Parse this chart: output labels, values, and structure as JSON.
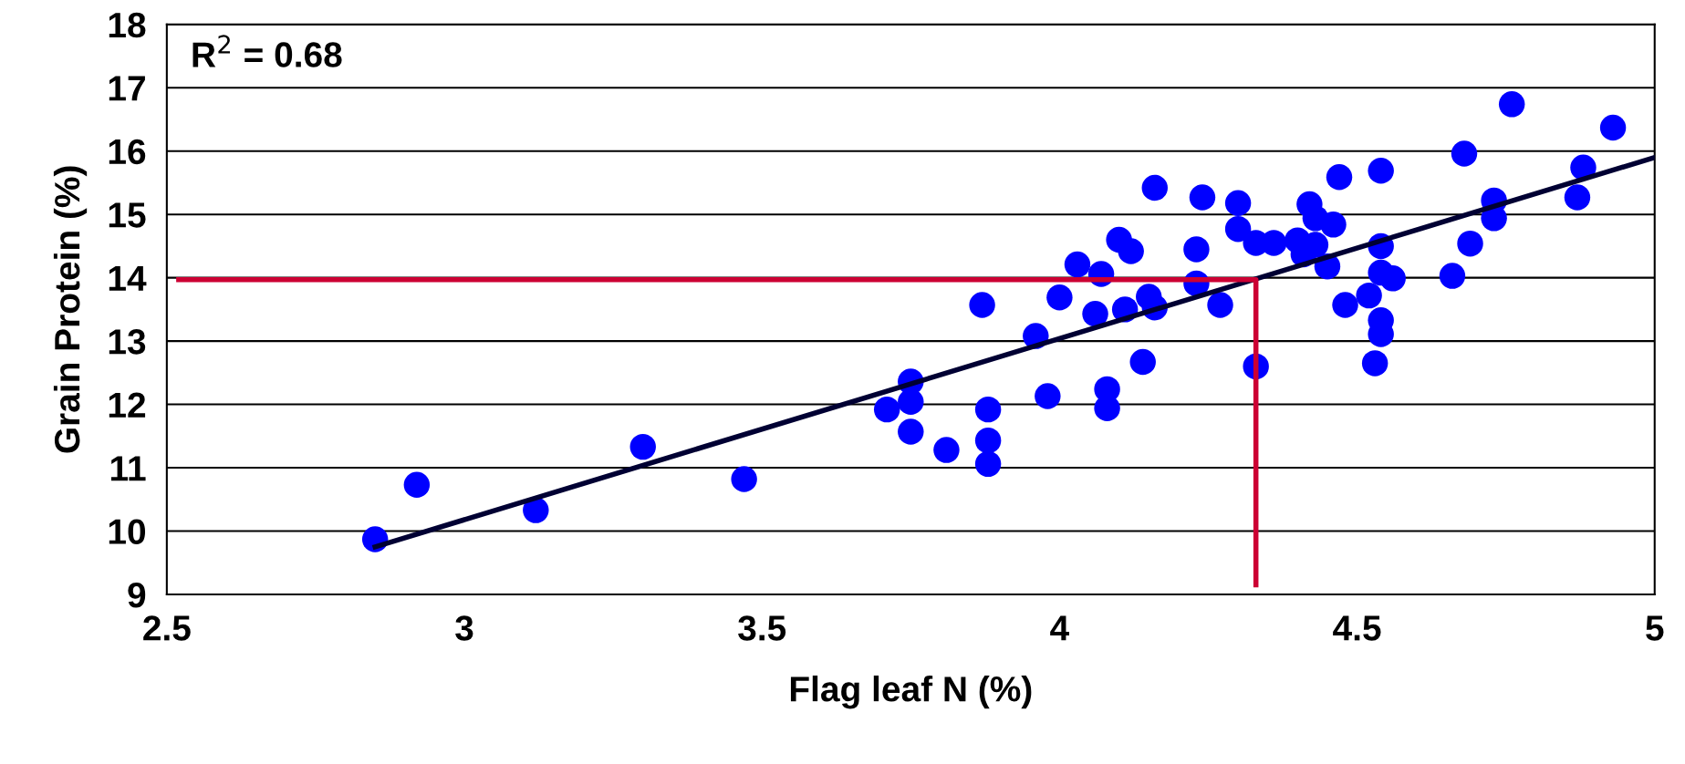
{
  "chart_data": {
    "type": "scatter",
    "xlabel": "Flag leaf N (%)",
    "ylabel": "Grain Protein (%)",
    "annotations": [
      "R$^{2}$ = 0.68"
    ],
    "xlim": [
      2.5,
      5
    ],
    "xticks": [
      2.5,
      3,
      3.5,
      4,
      4.5,
      5
    ],
    "ylim": [
      9,
      18
    ],
    "yticks": [
      9,
      10,
      11,
      12,
      13,
      14,
      15,
      16,
      17,
      18
    ],
    "grid": "y",
    "marker": "circle",
    "series": [
      {
        "color": "#0000ff",
        "x": [
          2.85,
          2.92,
          3.12,
          3.3,
          3.47,
          3.71,
          3.75,
          3.75,
          3.75,
          3.81,
          3.87,
          3.88,
          3.88,
          3.88,
          3.96,
          3.98,
          4.0,
          4.03,
          4.06,
          4.07,
          4.08,
          4.08,
          4.1,
          4.11,
          4.12,
          4.14,
          4.15,
          4.16,
          4.16,
          4.23,
          4.23,
          4.24,
          4.27,
          4.3,
          4.3,
          4.33,
          4.33,
          4.36,
          4.4,
          4.41,
          4.42,
          4.43,
          4.43,
          4.45,
          4.46,
          4.47,
          4.48,
          4.52,
          4.53,
          4.54,
          4.54,
          4.54,
          4.56,
          4.54,
          4.54,
          4.66,
          4.68,
          4.69,
          4.73,
          4.73,
          4.76,
          4.87,
          4.88,
          4.93
        ],
        "values": [
          9.87,
          10.73,
          10.33,
          11.33,
          10.82,
          11.92,
          12.36,
          12.04,
          11.57,
          11.28,
          13.57,
          11.43,
          11.06,
          11.92,
          13.08,
          12.13,
          13.69,
          14.21,
          13.43,
          14.06,
          11.94,
          12.24,
          14.6,
          13.5,
          14.42,
          12.67,
          13.7,
          13.53,
          15.42,
          14.45,
          13.91,
          15.27,
          13.57,
          15.18,
          14.77,
          12.6,
          14.55,
          14.55,
          14.59,
          14.37,
          15.16,
          14.52,
          14.94,
          14.18,
          14.84,
          15.59,
          13.57,
          13.72,
          12.65,
          15.69,
          14.5,
          14.08,
          13.99,
          13.33,
          13.11,
          14.03,
          15.96,
          14.54,
          15.22,
          14.94,
          16.74,
          15.27,
          15.74,
          16.37
        ]
      },
      {
        "type": "line",
        "color": "#000033",
        "marker": "none",
        "line_style": "solid",
        "x": [
          2.85,
          5.0
        ],
        "values": [
          9.75,
          15.9
        ]
      },
      {
        "type": "line",
        "color": "#cc0033",
        "marker": "none",
        "line_style": "solid",
        "x": [
          2.52,
          4.33,
          4.33
        ],
        "values": [
          13.97,
          13.97,
          9.15
        ]
      }
    ]
  }
}
